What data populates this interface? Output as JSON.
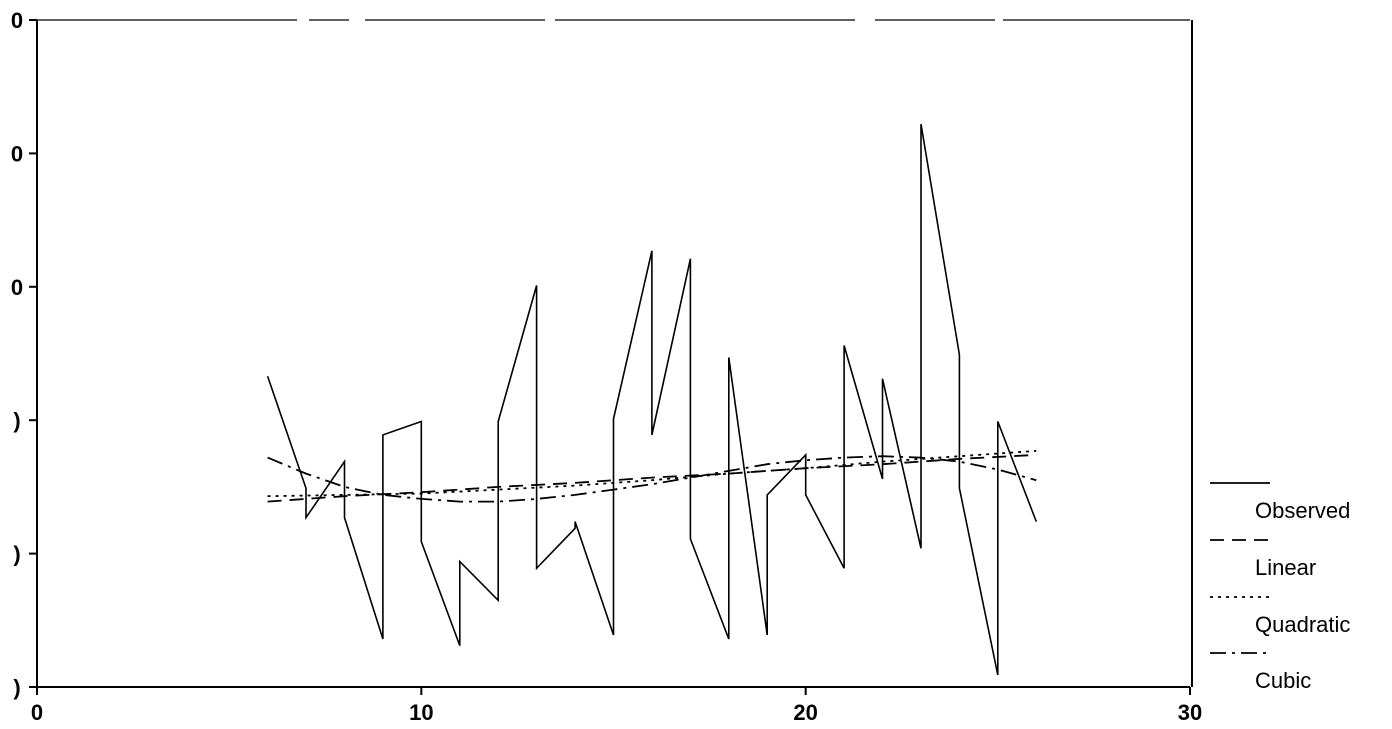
{
  "chart_data": {
    "type": "line",
    "title": "",
    "xlabel": "",
    "ylabel": "",
    "xlim": [
      0,
      30
    ],
    "ylim": [
      0,
      5
    ],
    "x_ticks": [
      {
        "value": 0,
        "label": "0"
      },
      {
        "value": 10,
        "label": "10"
      },
      {
        "value": 20,
        "label": "20"
      },
      {
        "value": 30,
        "label": "30"
      }
    ],
    "y_ticks": [
      {
        "value": 0,
        "label": ")"
      },
      {
        "value": 1,
        "label": ")"
      },
      {
        "value": 2,
        "label": ")"
      },
      {
        "value": 3,
        "label": "0"
      },
      {
        "value": 4,
        "label": "0"
      },
      {
        "value": 5,
        "label": "0"
      }
    ],
    "grid": false,
    "legend_position": "right-bottom",
    "colors": {
      "line": "#000000",
      "background": "#ffffff"
    },
    "series": [
      {
        "name": "Observed",
        "style": "solid",
        "x": [
          6,
          7,
          7,
          8,
          8,
          9,
          9,
          10,
          10,
          11,
          11,
          12,
          12,
          13,
          13,
          14,
          14,
          15,
          15,
          16,
          16,
          17,
          17,
          18,
          18,
          19,
          19,
          20,
          20,
          21,
          21,
          22,
          22,
          23,
          23,
          24,
          24,
          25,
          25,
          26
        ],
        "y": [
          2.33,
          1.49,
          1.27,
          1.69,
          1.27,
          0.36,
          1.89,
          1.99,
          1.09,
          0.31,
          0.94,
          0.65,
          1.99,
          3.01,
          0.89,
          1.19,
          1.24,
          0.39,
          2.01,
          3.27,
          1.89,
          3.21,
          1.11,
          0.36,
          2.47,
          0.39,
          1.44,
          1.74,
          1.44,
          0.89,
          2.56,
          1.56,
          2.31,
          1.04,
          4.22,
          2.49,
          1.49,
          0.09,
          1.99,
          1.24
        ]
      },
      {
        "name": "Linear",
        "style": "dashed",
        "x": [
          6,
          8,
          10,
          12,
          14,
          16,
          18,
          20,
          22,
          24,
          26
        ],
        "y": [
          1.39,
          1.43,
          1.46,
          1.5,
          1.53,
          1.57,
          1.6,
          1.64,
          1.67,
          1.71,
          1.74
        ]
      },
      {
        "name": "Quadratic",
        "style": "dotted",
        "x": [
          6,
          8,
          10,
          12,
          14,
          16,
          18,
          20,
          22,
          24,
          26
        ],
        "y": [
          1.43,
          1.44,
          1.45,
          1.48,
          1.51,
          1.55,
          1.6,
          1.64,
          1.69,
          1.73,
          1.77
        ]
      },
      {
        "name": "Cubic",
        "style": "dash-dot",
        "x": [
          6,
          7,
          8,
          9,
          10,
          11,
          12,
          13,
          14,
          15,
          16,
          17,
          18,
          19,
          20,
          21,
          22,
          23,
          24,
          25,
          26
        ],
        "y": [
          1.72,
          1.6,
          1.5,
          1.44,
          1.41,
          1.39,
          1.39,
          1.41,
          1.44,
          1.48,
          1.52,
          1.57,
          1.62,
          1.67,
          1.7,
          1.72,
          1.73,
          1.72,
          1.69,
          1.63,
          1.55
        ]
      }
    ]
  }
}
